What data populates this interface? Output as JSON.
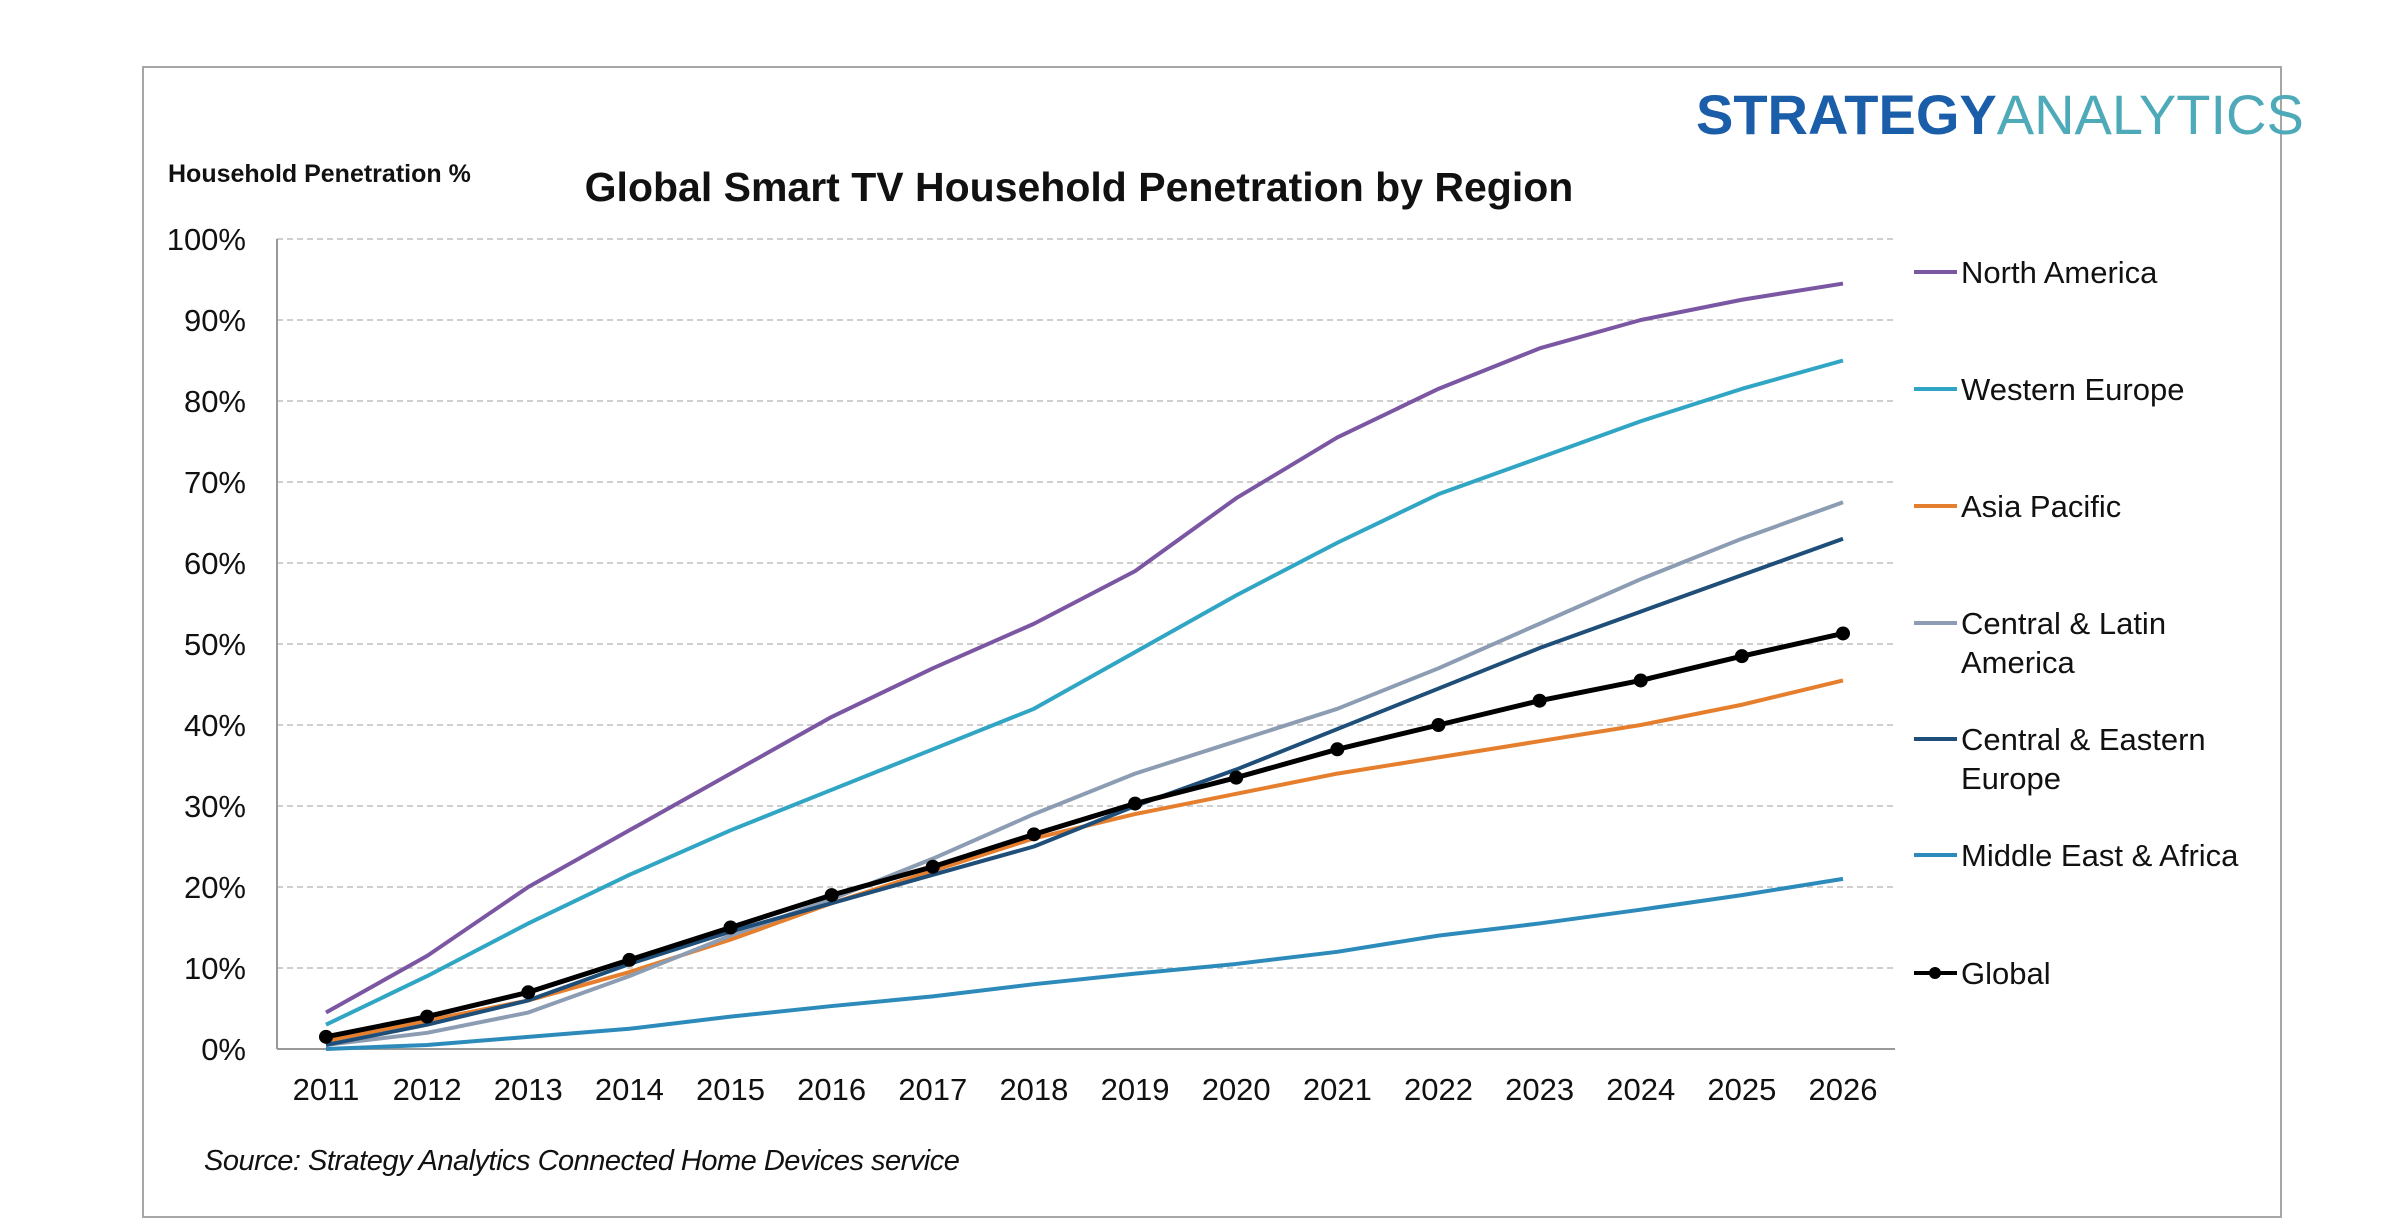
{
  "chart_data": {
    "type": "line",
    "title": "Global Smart TV Household Penetration by Region",
    "ylabel": "Household Penetration %",
    "xlabel": "",
    "source": "Source: Strategy Analytics Connected Home Devices service",
    "logo": {
      "part1": "STRATEGY",
      "part2": "ANALYTICS"
    },
    "x": [
      "2011",
      "2012",
      "2013",
      "2014",
      "2015",
      "2016",
      "2017",
      "2018",
      "2019",
      "2020",
      "2021",
      "2022",
      "2023",
      "2024",
      "2025",
      "2026"
    ],
    "ylim": [
      0,
      100
    ],
    "yticks": [
      0,
      10,
      20,
      30,
      40,
      50,
      60,
      70,
      80,
      90,
      100
    ],
    "ytick_labels": [
      "0%",
      "10%",
      "20%",
      "30%",
      "40%",
      "50%",
      "60%",
      "70%",
      "80%",
      "90%",
      "100%"
    ],
    "grid": true,
    "legend_position": "right",
    "series": [
      {
        "name": "North America",
        "legend_lines": [
          "North America"
        ],
        "color": "#7b57a3",
        "markers": false,
        "values": [
          4.5,
          11.5,
          20,
          27,
          34,
          41,
          47,
          52.5,
          59,
          68,
          75.5,
          81.5,
          86.5,
          90,
          92.5,
          94.5
        ]
      },
      {
        "name": "Western Europe",
        "legend_lines": [
          "Western Europe"
        ],
        "color": "#31a6c4",
        "markers": false,
        "values": [
          3,
          9,
          15.5,
          21.5,
          27,
          32,
          37,
          42,
          49,
          56,
          62.5,
          68.5,
          73,
          77.5,
          81.5,
          85
        ]
      },
      {
        "name": "Asia Pacific",
        "legend_lines": [
          "Asia Pacific"
        ],
        "color": "#e57f2d",
        "markers": false,
        "values": [
          1,
          3.5,
          6,
          9.5,
          13.5,
          18,
          22,
          26,
          29,
          31.5,
          34,
          36,
          38,
          40,
          42.5,
          45.5
        ]
      },
      {
        "name": "Central & Latin America",
        "legend_lines": [
          "Central & Latin",
          "America"
        ],
        "color": "#8c9db3",
        "markers": false,
        "values": [
          0.5,
          2,
          4.5,
          9,
          14,
          18.5,
          23.5,
          29,
          34,
          38,
          42,
          47,
          52.5,
          58,
          63,
          67.5
        ]
      },
      {
        "name": "Central & Eastern Europe",
        "legend_lines": [
          "Central & Eastern",
          "Europe"
        ],
        "color": "#1f4e79",
        "markers": false,
        "values": [
          0.5,
          3,
          6,
          10.5,
          14.5,
          18,
          21.5,
          25,
          30,
          34.5,
          39.5,
          44.5,
          49.5,
          54,
          58.5,
          63
        ]
      },
      {
        "name": "Middle East & Africa",
        "legend_lines": [
          "Middle East & Africa"
        ],
        "color": "#2d8bbb",
        "markers": false,
        "values": [
          0,
          0.5,
          1.5,
          2.5,
          4,
          5.3,
          6.5,
          8,
          9.3,
          10.5,
          12,
          14,
          15.5,
          17.2,
          19,
          21
        ]
      },
      {
        "name": "Global",
        "legend_lines": [
          "Global"
        ],
        "color": "#000000",
        "markers": true,
        "values": [
          1.5,
          4,
          7,
          11,
          15,
          19,
          22.5,
          26.5,
          30.3,
          33.5,
          37,
          40,
          43,
          45.5,
          48.5,
          51.3
        ]
      }
    ]
  }
}
